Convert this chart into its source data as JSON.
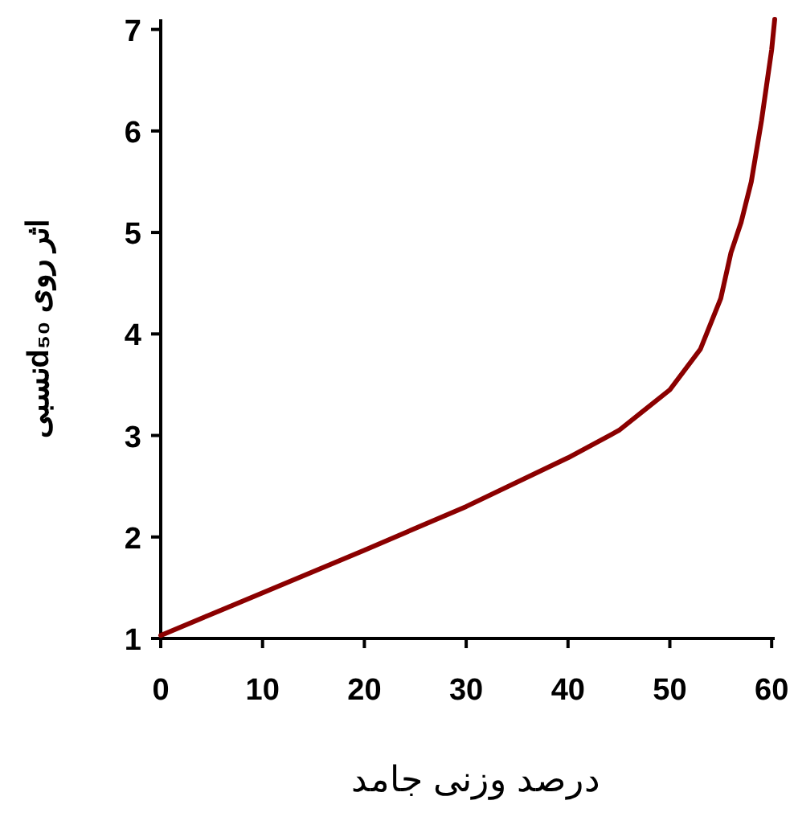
{
  "chart_data": {
    "type": "line",
    "xlabel": "درصد وزنی جامد",
    "ylabel": "اثر روی d₅₀نسبی",
    "xlim": [
      0,
      60.3
    ],
    "ylim": [
      1,
      7.1
    ],
    "xticks": [
      0,
      10,
      20,
      30,
      40,
      50,
      60
    ],
    "yticks": [
      1,
      2,
      3,
      4,
      5,
      6,
      7
    ],
    "grid": false,
    "marker": "none",
    "line_style": "solid",
    "series": [
      {
        "color": "#8b0000",
        "x": [
          0,
          10,
          20,
          30,
          40,
          45,
          50,
          53,
          55,
          56,
          57,
          58,
          59,
          60,
          60.3
        ],
        "values": [
          1.03,
          1.45,
          1.87,
          2.3,
          2.78,
          3.05,
          3.45,
          3.85,
          4.35,
          4.8,
          5.1,
          5.5,
          6.1,
          6.8,
          7.1
        ]
      }
    ]
  }
}
